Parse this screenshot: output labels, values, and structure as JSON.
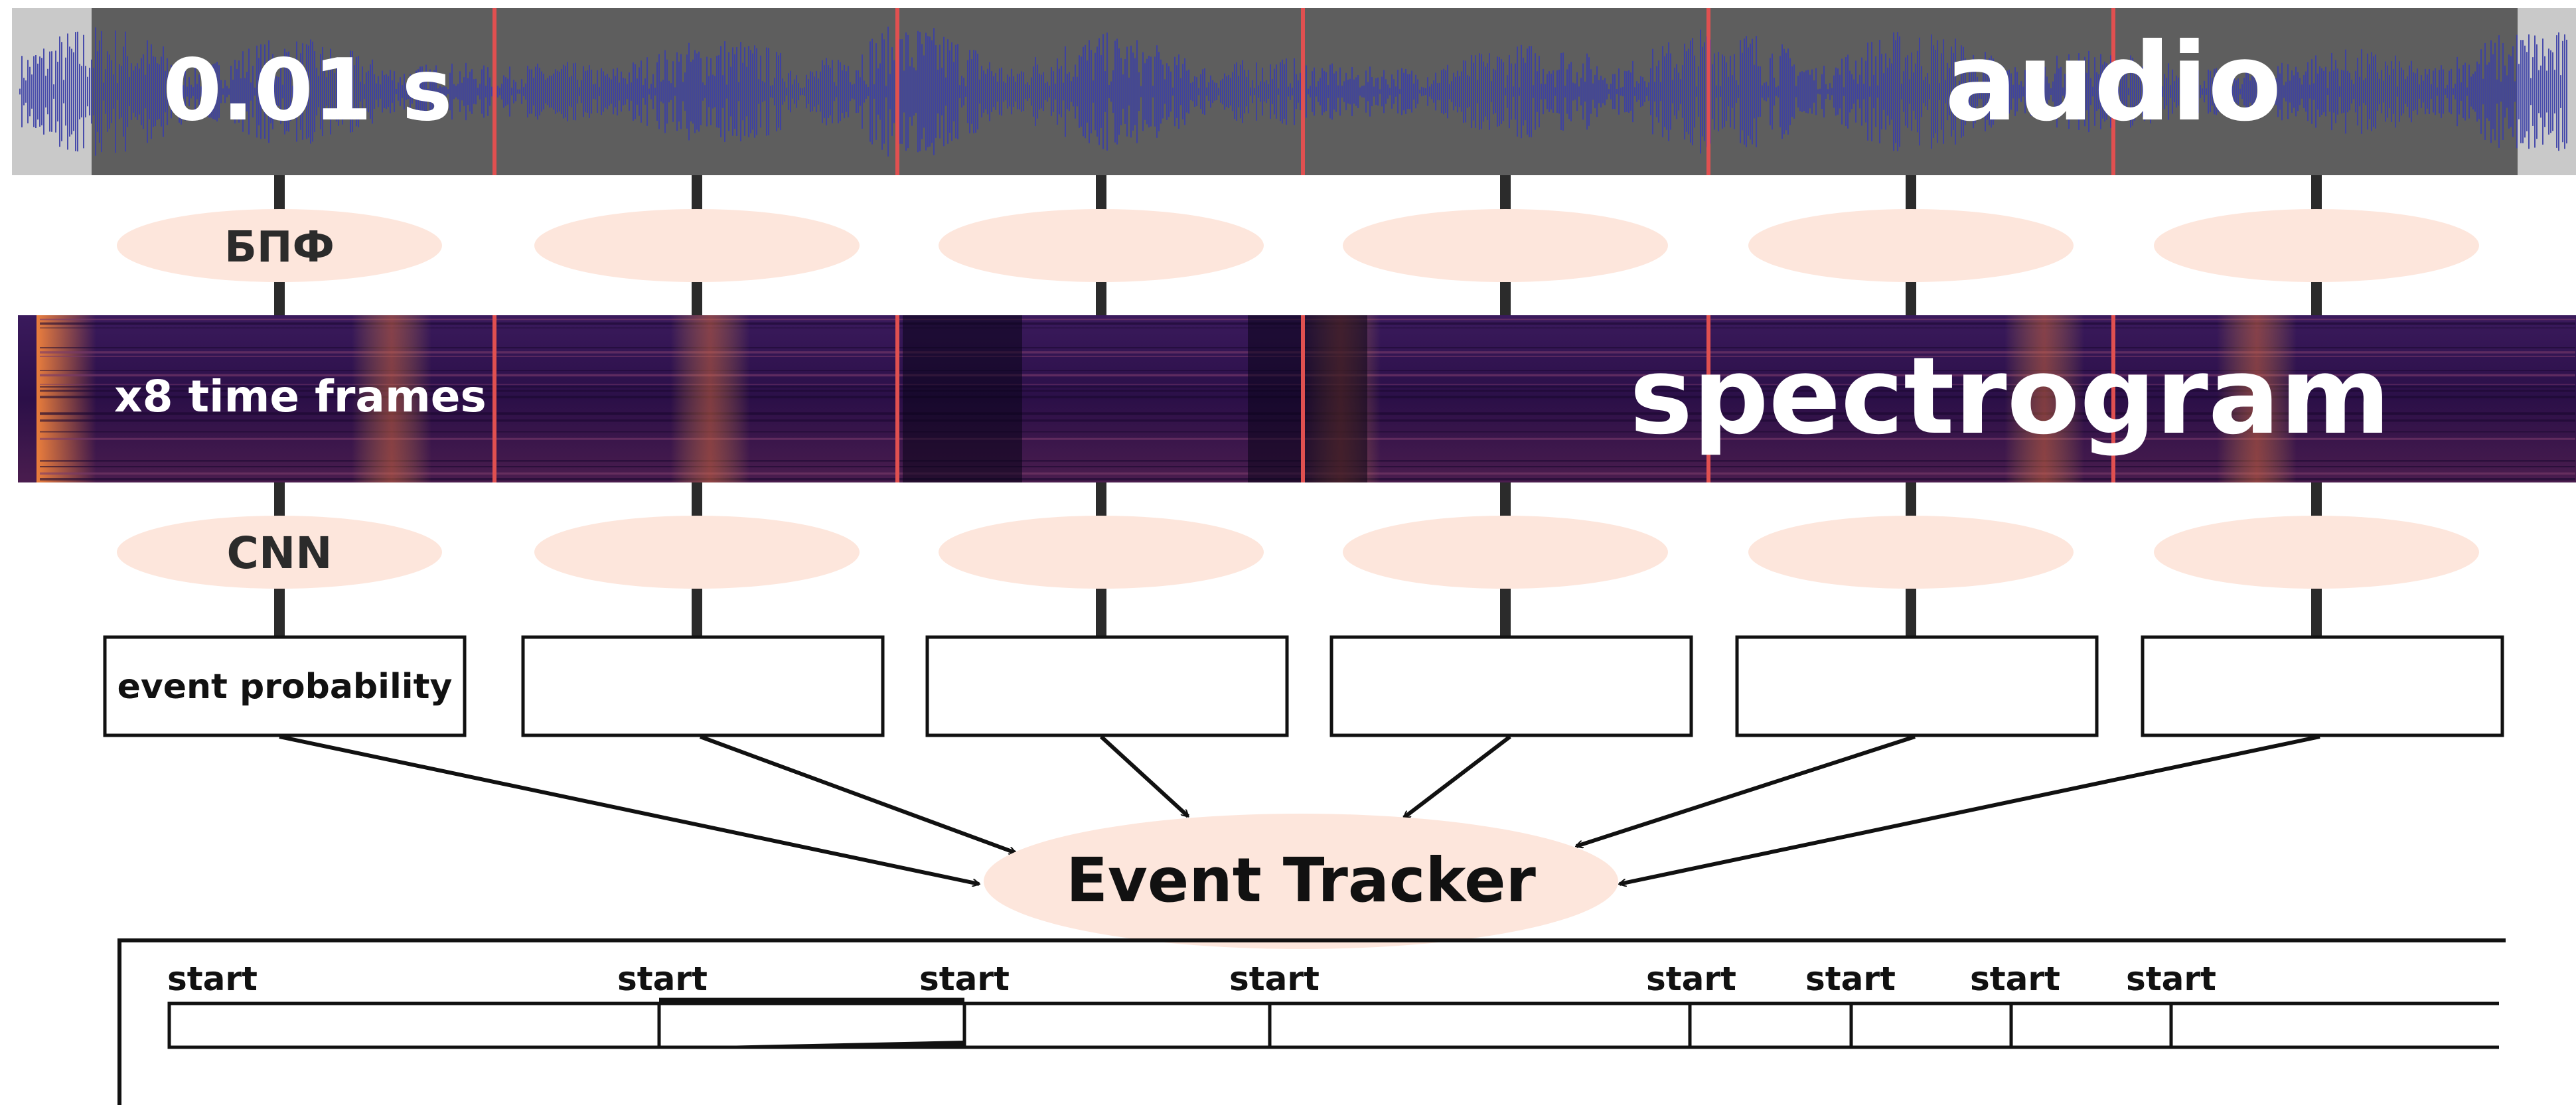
{
  "audio": {
    "duration_label": "0.01 s",
    "title": "audio"
  },
  "fft": {
    "label": "БПФ"
  },
  "spectrogram": {
    "frames_label": "x8 time frames",
    "title": "spectrogram"
  },
  "cnn": {
    "label": "CNN"
  },
  "probability": {
    "label": "event probability"
  },
  "tracker": {
    "label": "Event Tracker"
  },
  "timeline": {
    "start_labels": [
      "start",
      "start",
      "start",
      "start",
      "start",
      "start",
      "start",
      "start"
    ]
  },
  "colors": {
    "audio_bg": "#5e5e5e",
    "audio_edge": "#c9c9c9",
    "waveform": "#3b3fa8",
    "divider": "#e05050",
    "ellipse_fill": "#fde6dc",
    "spectrogram_base": "#2a0f45",
    "connector": "#2b2b2b"
  }
}
